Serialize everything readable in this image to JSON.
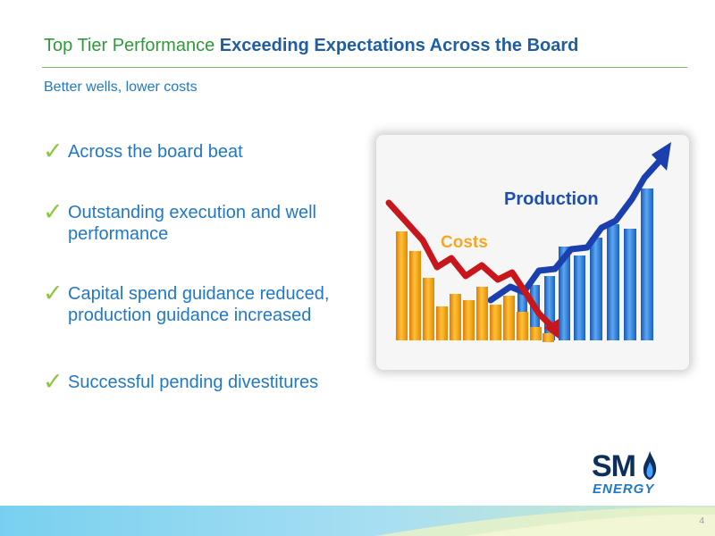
{
  "slide": {
    "title_plain": "Top Tier Performance",
    "title_bold": "Exceeding Expectations Across the Board",
    "subtitle": "Better wells, lower costs",
    "page_number": "4"
  },
  "bullets": [
    {
      "text": "Across the board beat"
    },
    {
      "text": "Outstanding execution and well performance"
    },
    {
      "text": "Capital spend guidance reduced, production guidance increased"
    },
    {
      "text": "Successful pending divestitures"
    }
  ],
  "image": {
    "costs_label": "Costs",
    "production_label": "Production"
  },
  "logo": {
    "sm": "SM",
    "energy": "ENERGY"
  },
  "colors": {
    "title_green": "#2e9a3a",
    "title_blue": "#1f5ea0",
    "text_blue": "#1f78c8",
    "check_green": "#8cc63f",
    "costs_orange": "#f5a623",
    "costs_line": "#c8161d",
    "production_blue": "#2a78d6",
    "production_line": "#1b3fae"
  },
  "icons": {
    "bullet": "checkmark-icon",
    "logo_mark": "flame-icon"
  }
}
